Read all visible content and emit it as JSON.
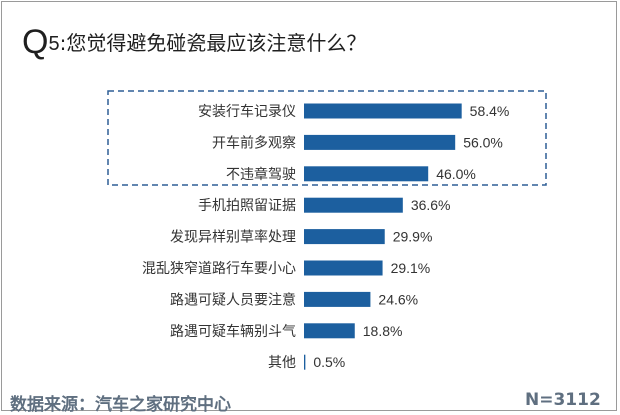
{
  "title": {
    "prefix": "Q",
    "number": "5",
    "text": ":您觉得避免碰瓷最应该注意什么？"
  },
  "chart_data": {
    "type": "bar",
    "orientation": "horizontal",
    "categories": [
      "安装行车记录仪",
      "开车前多观察",
      "不违章驾驶",
      "手机拍照留证据",
      "发现异样别草率处理",
      "混乱狭窄道路行车要小心",
      "路遇可疑人员要注意",
      "路遇可疑车辆别斗气",
      "其他"
    ],
    "values": [
      58.4,
      56.0,
      46.0,
      36.6,
      29.9,
      29.1,
      24.6,
      18.8,
      0.5
    ],
    "value_labels": [
      "58.4%",
      "56.0%",
      "46.0%",
      "36.6%",
      "29.9%",
      "29.1%",
      "24.6%",
      "18.8%",
      "0.5%"
    ],
    "highlighted_top": 3,
    "bar_color": "#1c5f9f",
    "highlight_border_color": "#2f5f96",
    "grid": false,
    "legend": "none"
  },
  "footer": {
    "source": "数据来源：汽车之家研究中心",
    "sample": "N=3112"
  }
}
